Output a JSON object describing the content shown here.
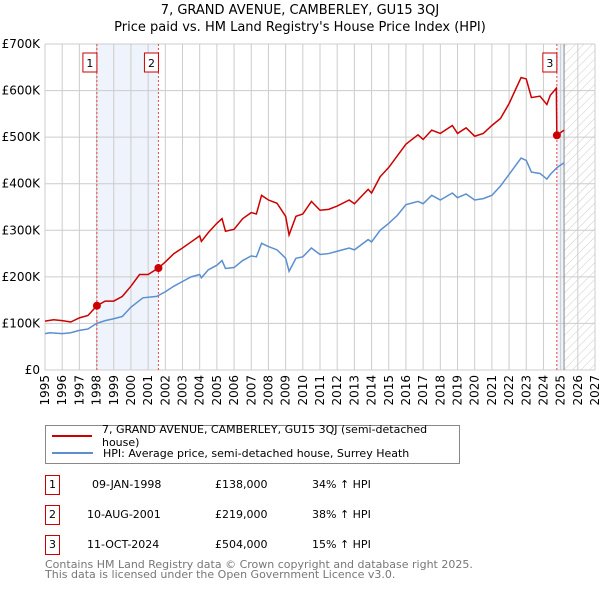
{
  "title_line1": "7, GRAND AVENUE, CAMBERLEY, GU15 3QJ",
  "title_line2": "Price paid vs. HM Land Registry's House Price Index (HPI)",
  "colors": {
    "property": "#cc0000",
    "hpi": "#5b8fd0",
    "shade": "#eef3fc"
  },
  "chart_data": {
    "type": "line",
    "title": "7, GRAND AVENUE, CAMBERLEY, GU15 3QJ — Price paid vs. HM Land Registry's House Price Index (HPI)",
    "xlim": [
      1995,
      2027
    ],
    "ylim": [
      0,
      700000
    ],
    "y_ticks": [
      0,
      100000,
      200000,
      300000,
      400000,
      500000,
      600000,
      700000
    ],
    "y_tick_labels": [
      "£0",
      "£100K",
      "£200K",
      "£300K",
      "£400K",
      "£500K",
      "£600K",
      "£700K"
    ],
    "x_ticks": [
      "1995",
      "1996",
      "1997",
      "1998",
      "1999",
      "2000",
      "2001",
      "2002",
      "2003",
      "2004",
      "2005",
      "2006",
      "2007",
      "2008",
      "2009",
      "2010",
      "2011",
      "2012",
      "2013",
      "2014",
      "2015",
      "2016",
      "2017",
      "2018",
      "2019",
      "2020",
      "2021",
      "2022",
      "2023",
      "2024",
      "2025",
      "2026",
      "2027"
    ],
    "grid": true,
    "forecast_hatch_from": 2025.2,
    "series": [
      {
        "name": "7, GRAND AVENUE, CAMBERLEY, GU15 3QJ (semi-detached house)",
        "color": "#cc0000",
        "points": [
          [
            1995,
            105000
          ],
          [
            1995.5,
            108000
          ],
          [
            1996,
            106000
          ],
          [
            1996.5,
            103000
          ],
          [
            1997,
            112000
          ],
          [
            1997.5,
            117000
          ],
          [
            1998.02,
            138000
          ],
          [
            1998.5,
            148000
          ],
          [
            1999,
            148000
          ],
          [
            1999.5,
            158000
          ],
          [
            2000,
            180000
          ],
          [
            2000.5,
            205000
          ],
          [
            2001,
            205000
          ],
          [
            2001.6,
            219000
          ],
          [
            2002,
            232000
          ],
          [
            2002.5,
            250000
          ],
          [
            2003,
            262000
          ],
          [
            2003.5,
            275000
          ],
          [
            2004,
            288000
          ],
          [
            2004.1,
            276000
          ],
          [
            2004.5,
            295000
          ],
          [
            2005,
            315000
          ],
          [
            2005.3,
            325000
          ],
          [
            2005.5,
            298000
          ],
          [
            2006,
            302000
          ],
          [
            2006.5,
            325000
          ],
          [
            2007,
            338000
          ],
          [
            2007.3,
            335000
          ],
          [
            2007.6,
            375000
          ],
          [
            2008,
            365000
          ],
          [
            2008.5,
            358000
          ],
          [
            2009,
            330000
          ],
          [
            2009.2,
            290000
          ],
          [
            2009.6,
            330000
          ],
          [
            2010,
            335000
          ],
          [
            2010.5,
            362000
          ],
          [
            2011,
            343000
          ],
          [
            2011.5,
            345000
          ],
          [
            2012,
            352000
          ],
          [
            2012.7,
            365000
          ],
          [
            2013,
            357000
          ],
          [
            2013.8,
            388000
          ],
          [
            2014,
            380000
          ],
          [
            2014.5,
            415000
          ],
          [
            2015,
            435000
          ],
          [
            2015.5,
            460000
          ],
          [
            2016,
            485000
          ],
          [
            2016.7,
            505000
          ],
          [
            2017,
            495000
          ],
          [
            2017.5,
            515000
          ],
          [
            2018,
            508000
          ],
          [
            2018.7,
            525000
          ],
          [
            2019,
            508000
          ],
          [
            2019.5,
            520000
          ],
          [
            2020,
            502000
          ],
          [
            2020.5,
            508000
          ],
          [
            2021,
            525000
          ],
          [
            2021.5,
            540000
          ],
          [
            2022,
            572000
          ],
          [
            2022.7,
            628000
          ],
          [
            2023,
            625000
          ],
          [
            2023.3,
            585000
          ],
          [
            2023.8,
            588000
          ],
          [
            2024.2,
            570000
          ],
          [
            2024.4,
            590000
          ],
          [
            2024.75,
            605000
          ],
          [
            2024.78,
            504000
          ],
          [
            2025.2,
            515000
          ]
        ]
      },
      {
        "name": "HPI: Average price, semi-detached house, Surrey Heath",
        "color": "#5b8fd0",
        "points": [
          [
            1995,
            78000
          ],
          [
            1995.3,
            80000
          ],
          [
            1996,
            78000
          ],
          [
            1996.5,
            80000
          ],
          [
            1997,
            85000
          ],
          [
            1997.5,
            88000
          ],
          [
            1998,
            100000
          ],
          [
            1998.5,
            106000
          ],
          [
            1999,
            110000
          ],
          [
            1999.5,
            115000
          ],
          [
            2000,
            135000
          ],
          [
            2000.7,
            155000
          ],
          [
            2001.5,
            158000
          ],
          [
            2002,
            168000
          ],
          [
            2002.5,
            180000
          ],
          [
            2003,
            190000
          ],
          [
            2003.5,
            200000
          ],
          [
            2004,
            205000
          ],
          [
            2004.1,
            198000
          ],
          [
            2004.5,
            215000
          ],
          [
            2005,
            225000
          ],
          [
            2005.3,
            235000
          ],
          [
            2005.5,
            218000
          ],
          [
            2006,
            220000
          ],
          [
            2006.5,
            235000
          ],
          [
            2007,
            245000
          ],
          [
            2007.3,
            243000
          ],
          [
            2007.6,
            272000
          ],
          [
            2008,
            265000
          ],
          [
            2008.5,
            258000
          ],
          [
            2009,
            240000
          ],
          [
            2009.2,
            212000
          ],
          [
            2009.6,
            240000
          ],
          [
            2010,
            243000
          ],
          [
            2010.5,
            262000
          ],
          [
            2011,
            248000
          ],
          [
            2011.5,
            250000
          ],
          [
            2012,
            255000
          ],
          [
            2012.7,
            262000
          ],
          [
            2013,
            258000
          ],
          [
            2013.8,
            280000
          ],
          [
            2014,
            275000
          ],
          [
            2014.5,
            300000
          ],
          [
            2015,
            315000
          ],
          [
            2015.5,
            332000
          ],
          [
            2016,
            355000
          ],
          [
            2016.7,
            362000
          ],
          [
            2017,
            357000
          ],
          [
            2017.5,
            375000
          ],
          [
            2018,
            365000
          ],
          [
            2018.7,
            380000
          ],
          [
            2019,
            370000
          ],
          [
            2019.5,
            378000
          ],
          [
            2020,
            365000
          ],
          [
            2020.5,
            368000
          ],
          [
            2021,
            375000
          ],
          [
            2021.5,
            395000
          ],
          [
            2022,
            420000
          ],
          [
            2022.7,
            455000
          ],
          [
            2023,
            450000
          ],
          [
            2023.3,
            425000
          ],
          [
            2023.8,
            422000
          ],
          [
            2024.2,
            410000
          ],
          [
            2024.4,
            420000
          ],
          [
            2024.8,
            435000
          ],
          [
            2025.2,
            445000
          ]
        ]
      }
    ],
    "sales": [
      {
        "label": "1",
        "year": 1998.02,
        "value": 138000,
        "date": "09-JAN-1998",
        "price": "£138,000",
        "hpi_change": "34% ↑ HPI"
      },
      {
        "label": "2",
        "year": 2001.6,
        "value": 219000,
        "date": "10-AUG-2001",
        "price": "£219,000",
        "hpi_change": "38% ↑ HPI"
      },
      {
        "label": "3",
        "year": 2024.78,
        "value": 504000,
        "date": "11-OCT-2024",
        "price": "£504,000",
        "hpi_change": "15% ↑ HPI"
      }
    ]
  },
  "legend": {
    "property": "7, GRAND AVENUE, CAMBERLEY, GU15 3QJ (semi-detached house)",
    "hpi": "HPI: Average price, semi-detached house, Surrey Heath"
  },
  "footer_line1": "Contains HM Land Registry data © Crown copyright and database right 2025.",
  "footer_line2": "This data is licensed under the Open Government Licence v3.0."
}
